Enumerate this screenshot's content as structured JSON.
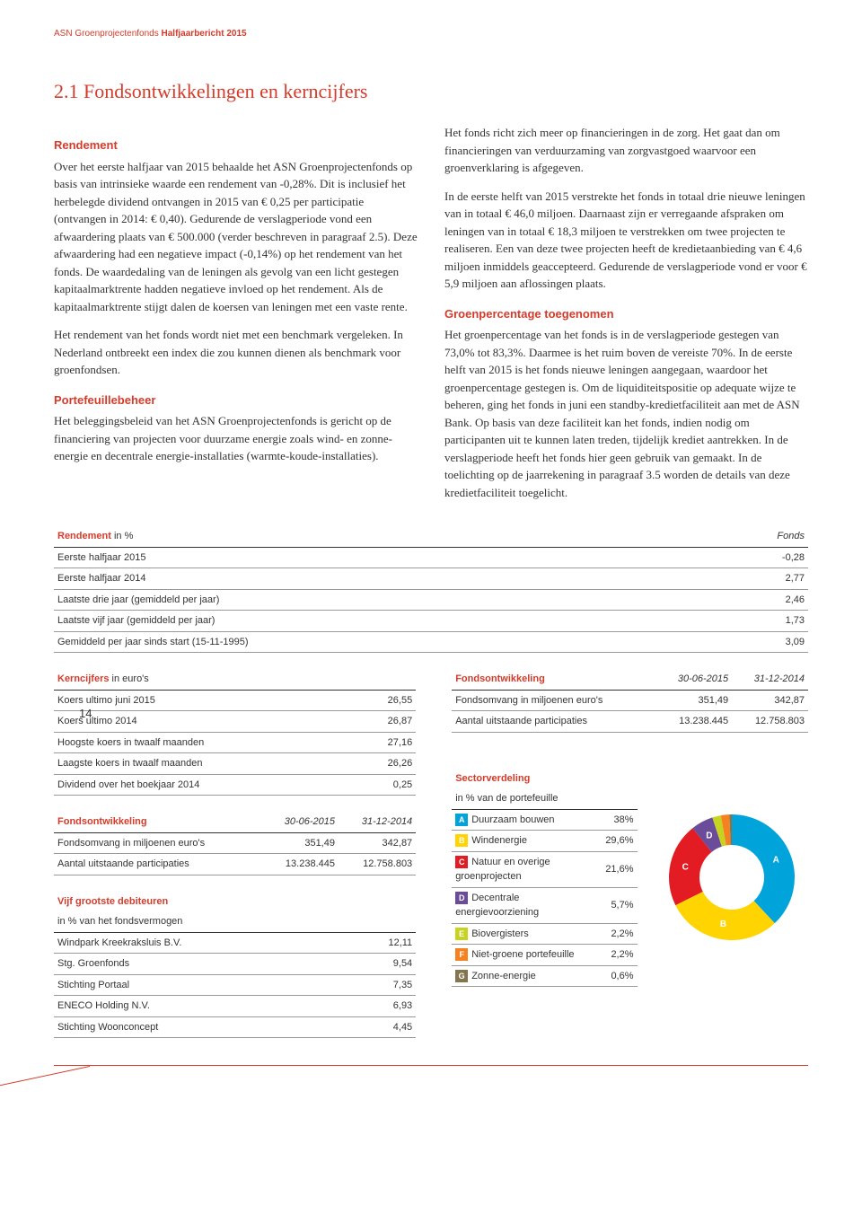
{
  "header": {
    "brand": "ASN Groenprojectenfonds",
    "doc": "Halfjaarbericht 2015"
  },
  "pageNumber": "14",
  "title": "2.1 Fondsontwikkelingen en kerncijfers",
  "left": {
    "h1": "Rendement",
    "p1": "Over het eerste halfjaar van 2015 behaalde het ASN Groenprojectenfonds op basis van intrinsieke waarde een rendement van -0,28%. Dit is inclusief het herbelegde dividend ontvangen in 2015 van € 0,25 per participatie (ontvangen in 2014: € 0,40). Gedurende de verslagperiode vond een afwaardering plaats van € 500.000 (verder beschreven in paragraaf 2.5). Deze afwaardering had een negatieve impact (-0,14%) op het rendement van het fonds. De waardedaling van de leningen als gevolg van een licht gestegen kapitaalmarktrente hadden negatieve invloed op het rendement. Als de kapitaalmarktrente stijgt dalen de koersen van leningen met een vaste rente.",
    "p2": "Het rendement van het fonds wordt niet met een benchmark vergeleken. In Nederland ontbreekt een index die zou kunnen dienen als benchmark voor groenfondsen.",
    "h2": "Portefeuillebeheer",
    "p3": "Het beleggingsbeleid van het ASN Groenprojectenfonds is gericht op de financiering van projecten voor duurzame energie zoals wind- en zonne-energie en decentrale energie-installaties (warmte-koude-installaties)."
  },
  "right": {
    "p1": "Het fonds richt zich meer op financieringen in de zorg. Het gaat dan om financieringen van verduurzaming van zorgvastgoed waarvoor een groenverklaring is afgegeven.",
    "p2": "In de eerste helft van 2015 verstrekte het fonds in totaal drie nieuwe leningen van in totaal € 46,0 miljoen. Daarnaast zijn er verregaande afspraken om leningen van in totaal € 18,3 miljoen te verstrekken om twee projecten te realiseren. Een van deze twee projecten heeft de kredietaanbieding van € 4,6 miljoen inmiddels geaccepteerd. Gedurende de verslagperiode vond er voor € 5,9 miljoen aan aflossingen plaats.",
    "h1": "Groenpercentage toegenomen",
    "p3": "Het groenpercentage van het fonds is in de verslagperiode gestegen van 73,0% tot 83,3%. Daarmee is het ruim boven de vereiste 70%. In de eerste helft van 2015 is het fonds nieuwe leningen aangegaan, waardoor het groenpercentage gestegen is. Om de liquiditeitspositie op adequate wijze te beheren, ging het fonds in juni een standby-kredietfaciliteit aan met de ASN Bank. Op basis van deze faciliteit kan het fonds, indien nodig om participanten uit te kunnen laten treden, tijdelijk krediet aantrekken. In de verslagperiode heeft het fonds hier geen gebruik van gemaakt. In de toelichting op de jaarrekening in paragraaf 3.5 worden de details van deze kredietfaciliteit toegelicht."
  },
  "rendTable": {
    "title": "Rendement",
    "unit": "in %",
    "colHead": "Fonds",
    "rows": [
      {
        "label": "Eerste halfjaar 2015",
        "val": "-0,28"
      },
      {
        "label": "Eerste halfjaar 2014",
        "val": "2,77"
      },
      {
        "label": "Laatste drie jaar (gemiddeld per jaar)",
        "val": "2,46"
      },
      {
        "label": "Laatste vijf jaar (gemiddeld per jaar)",
        "val": "1,73"
      },
      {
        "label": "Gemiddeld per jaar sinds start (15-11-1995)",
        "val": "3,09"
      }
    ]
  },
  "kern": {
    "title": "Kerncijfers",
    "unit": "in euro's",
    "rows": [
      {
        "label": "Koers ultimo juni 2015",
        "val": "26,55"
      },
      {
        "label": "Koers ultimo 2014",
        "val": "26,87"
      },
      {
        "label": "Hoogste koers in twaalf maanden",
        "val": "27,16"
      },
      {
        "label": "Laagste koers in twaalf maanden",
        "val": "26,26"
      },
      {
        "label": "Dividend over het boekjaar 2014",
        "val": "0,25"
      }
    ]
  },
  "fonds1": {
    "title": "Fondsontwikkeling",
    "c1": "30-06-2015",
    "c2": "31-12-2014",
    "rows": [
      {
        "label": "Fondsomvang in miljoenen euro's",
        "v1": "351,49",
        "v2": "342,87"
      },
      {
        "label": "Aantal uitstaande participaties",
        "v1": "13.238.445",
        "v2": "12.758.803"
      }
    ]
  },
  "fonds2": {
    "title": "Fondsontwikkeling",
    "c1": "30-06-2015",
    "c2": "31-12-2014",
    "rows": [
      {
        "label": "Fondsomvang in miljoenen euro's",
        "v1": "351,49",
        "v2": "342,87"
      },
      {
        "label": "Aantal uitstaande participaties",
        "v1": "13.238.445",
        "v2": "12.758.803"
      }
    ]
  },
  "debit": {
    "title": "Vijf grootste debiteuren",
    "sub": "in % van het fondsvermogen",
    "rows": [
      {
        "label": "Windpark Kreekraksluis B.V.",
        "val": "12,11"
      },
      {
        "label": "Stg. Groenfonds",
        "val": "9,54"
      },
      {
        "label": "Stichting Portaal",
        "val": "7,35"
      },
      {
        "label": "ENECO Holding N.V.",
        "val": "6,93"
      },
      {
        "label": "Stichting Woonconcept",
        "val": "4,45"
      }
    ]
  },
  "sector": {
    "title": "Sectorverdeling",
    "sub": "in % van de portefeuille",
    "rows": [
      {
        "letter": "A",
        "label": "Duurzaam bouwen",
        "val": "38%",
        "color": "#00a3da"
      },
      {
        "letter": "B",
        "label": "Windenergie",
        "val": "29,6%",
        "color": "#ffd400"
      },
      {
        "letter": "C",
        "label": "Natuur en overige groenprojecten",
        "val": "21,6%",
        "color": "#e31b23"
      },
      {
        "letter": "D",
        "label": "Decentrale energievoorziening",
        "val": "5,7%",
        "color": "#6b4c9a"
      },
      {
        "letter": "E",
        "label": "Biovergisters",
        "val": "2,2%",
        "color": "#c6d420"
      },
      {
        "letter": "F",
        "label": "Niet-groene portefeuille",
        "val": "2,2%",
        "color": "#f58220"
      },
      {
        "letter": "G",
        "label": "Zonne-energie",
        "val": "0,6%",
        "color": "#84754e"
      }
    ],
    "chart": {
      "type": "pie",
      "inner_radius": 36,
      "outer_radius": 70,
      "background": "#ffffff",
      "slices": [
        {
          "letter": "A",
          "value": 38.0,
          "color": "#00a3da"
        },
        {
          "letter": "B",
          "value": 29.6,
          "color": "#ffd400"
        },
        {
          "letter": "C",
          "value": 21.6,
          "color": "#e31b23"
        },
        {
          "letter": "D",
          "value": 5.7,
          "color": "#6b4c9a"
        },
        {
          "letter": "E",
          "value": 2.2,
          "color": "#c6d420"
        },
        {
          "letter": "F",
          "value": 2.2,
          "color": "#f58220"
        },
        {
          "letter": "G",
          "value": 0.6,
          "color": "#84754e"
        }
      ]
    }
  }
}
